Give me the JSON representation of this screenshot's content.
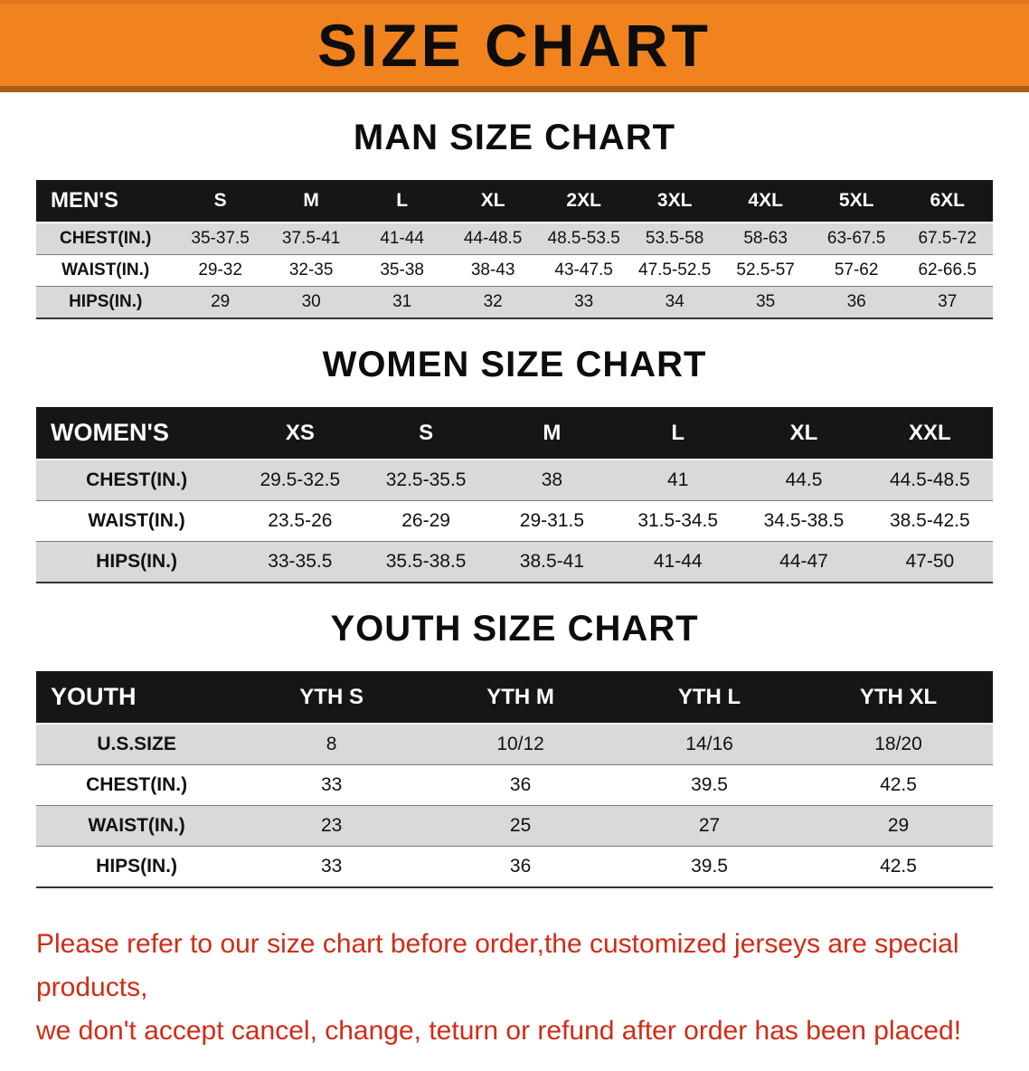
{
  "banner": {
    "title": "SIZE CHART"
  },
  "colors": {
    "banner_bg": "#f0831e",
    "header_bg": "#161616",
    "row_shade": "#d9d9d9",
    "disclaimer_color": "#d02c17"
  },
  "sections": [
    {
      "id": "men",
      "heading": "MAN SIZE CHART",
      "table": {
        "header": [
          "MEN'S",
          "S",
          "M",
          "L",
          "XL",
          "2XL",
          "3XL",
          "4XL",
          "5XL",
          "6XL"
        ],
        "rows": [
          {
            "label": "CHEST(IN.)",
            "values": [
              "35-37.5",
              "37.5-41",
              "41-44",
              "44-48.5",
              "48.5-53.5",
              "53.5-58",
              "58-63",
              "63-67.5",
              "67.5-72"
            ]
          },
          {
            "label": "WAIST(IN.)",
            "values": [
              "29-32",
              "32-35",
              "35-38",
              "38-43",
              "43-47.5",
              "47.5-52.5",
              "52.5-57",
              "57-62",
              "62-66.5"
            ]
          },
          {
            "label": "HIPS(IN.)",
            "values": [
              "29",
              "30",
              "31",
              "32",
              "33",
              "34",
              "35",
              "36",
              "37"
            ]
          }
        ]
      }
    },
    {
      "id": "women",
      "heading": "WOMEN SIZE CHART",
      "table": {
        "header": [
          "WOMEN'S",
          "XS",
          "S",
          "M",
          "L",
          "XL",
          "XXL"
        ],
        "rows": [
          {
            "label": "CHEST(IN.)",
            "values": [
              "29.5-32.5",
              "32.5-35.5",
              "38",
              "41",
              "44.5",
              "44.5-48.5"
            ]
          },
          {
            "label": "WAIST(IN.)",
            "values": [
              "23.5-26",
              "26-29",
              "29-31.5",
              "31.5-34.5",
              "34.5-38.5",
              "38.5-42.5"
            ]
          },
          {
            "label": "HIPS(IN.)",
            "values": [
              "33-35.5",
              "35.5-38.5",
              "38.5-41",
              "41-44",
              "44-47",
              "47-50"
            ]
          }
        ]
      }
    },
    {
      "id": "youth",
      "heading": "YOUTH SIZE CHART",
      "table": {
        "header": [
          "YOUTH",
          "YTH S",
          "YTH M",
          "YTH L",
          "YTH XL"
        ],
        "rows": [
          {
            "label": "U.S.SIZE",
            "values": [
              "8",
              "10/12",
              "14/16",
              "18/20"
            ]
          },
          {
            "label": "CHEST(IN.)",
            "values": [
              "33",
              "36",
              "39.5",
              "42.5"
            ]
          },
          {
            "label": "WAIST(IN.)",
            "values": [
              "23",
              "25",
              "27",
              "29"
            ]
          },
          {
            "label": "HIPS(IN.)",
            "values": [
              "33",
              "36",
              "39.5",
              "42.5"
            ]
          }
        ]
      }
    }
  ],
  "disclaimer": {
    "line1": "Please refer to our size chart before order,the customized jerseys are special products,",
    "line2": "we don't accept cancel, change, teturn or refund after order has been placed!"
  }
}
